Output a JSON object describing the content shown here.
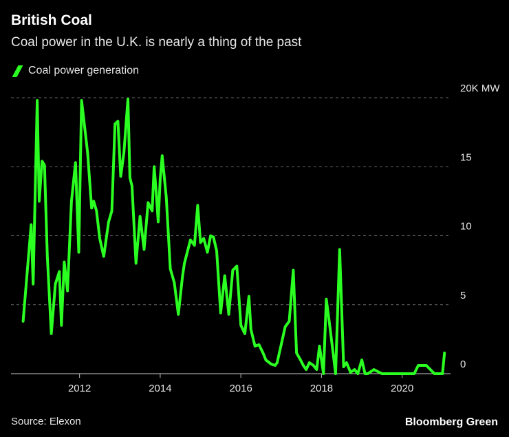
{
  "header": {
    "title": "British Coal",
    "subtitle": "Coal power in the U.K. is nearly a thing of the past"
  },
  "legend": {
    "label": "Coal power generation",
    "color": "#2bff22"
  },
  "footer": {
    "source": "Source: Elexon",
    "brand": "Bloomberg Green"
  },
  "colors": {
    "background": "#000000",
    "line": "#2bff22",
    "grid": "#666666",
    "text": "#e6e6e6"
  },
  "chart_data": {
    "type": "line",
    "title": "British Coal",
    "subtitle": "Coal power in the U.K. is nearly a thing of the past",
    "xlabel": "",
    "ylabel": "MW",
    "xlim": [
      2010.3,
      2021.2
    ],
    "ylim": [
      0,
      20000
    ],
    "x_ticks": [
      2012,
      2014,
      2016,
      2018,
      2020
    ],
    "x_tick_labels": [
      "2012",
      "2014",
      "2016",
      "2018",
      "2020"
    ],
    "y_ticks": [
      0,
      5000,
      10000,
      15000,
      20000
    ],
    "y_tick_labels": [
      "0",
      "5",
      "10",
      "15",
      "20K MW"
    ],
    "grid": true,
    "legend_position": "top-left",
    "series": [
      {
        "name": "Coal power generation",
        "x": [
          2010.6,
          2010.8,
          2010.85,
          2010.95,
          2011.0,
          2011.07,
          2011.13,
          2011.2,
          2011.3,
          2011.4,
          2011.5,
          2011.55,
          2011.62,
          2011.7,
          2011.8,
          2011.9,
          2011.98,
          2012.05,
          2012.2,
          2012.3,
          2012.35,
          2012.42,
          2012.5,
          2012.6,
          2012.72,
          2012.8,
          2012.88,
          2012.95,
          2013.02,
          2013.1,
          2013.2,
          2013.25,
          2013.3,
          2013.4,
          2013.5,
          2013.6,
          2013.7,
          2013.8,
          2013.85,
          2013.9,
          2013.95,
          2014.0,
          2014.05,
          2014.15,
          2014.25,
          2014.35,
          2014.45,
          2014.55,
          2014.6,
          2014.75,
          2014.85,
          2014.93,
          2015.0,
          2015.08,
          2015.17,
          2015.25,
          2015.32,
          2015.4,
          2015.5,
          2015.6,
          2015.7,
          2015.8,
          2015.9,
          2016.0,
          2016.1,
          2016.2,
          2016.25,
          2016.35,
          2016.45,
          2016.55,
          2016.62,
          2016.75,
          2016.85,
          2016.9,
          2017.0,
          2017.1,
          2017.2,
          2017.3,
          2017.38,
          2017.48,
          2017.55,
          2017.62,
          2017.7,
          2017.8,
          2017.88,
          2017.95,
          2018.05,
          2018.12,
          2018.2,
          2018.3,
          2018.35,
          2018.45,
          2018.55,
          2018.62,
          2018.72,
          2018.82,
          2018.9,
          2019.0,
          2019.08,
          2019.15,
          2019.3,
          2019.5,
          2019.7,
          2019.9,
          2020.05,
          2020.2,
          2020.3,
          2020.4,
          2020.5,
          2020.6,
          2020.8,
          2020.95,
          2021.0,
          2021.05
        ],
        "values": [
          3800,
          10800,
          6500,
          19800,
          12500,
          15400,
          15100,
          8500,
          2900,
          6500,
          7400,
          3500,
          8100,
          6000,
          12500,
          15300,
          8800,
          19800,
          16000,
          12000,
          12500,
          11800,
          9800,
          8500,
          11000,
          11800,
          18100,
          18300,
          14300,
          16000,
          19900,
          14200,
          13600,
          8000,
          11400,
          9000,
          12400,
          11800,
          15000,
          13200,
          11000,
          14100,
          15800,
          12800,
          7600,
          6600,
          4300,
          7000,
          8000,
          9700,
          9300,
          12200,
          9500,
          9800,
          8800,
          10000,
          9900,
          8900,
          4400,
          7100,
          4300,
          7500,
          7800,
          3500,
          2900,
          5600,
          3200,
          2000,
          2100,
          1500,
          1000,
          700,
          600,
          800,
          2100,
          3400,
          3800,
          7500,
          1500,
          1000,
          600,
          300,
          800,
          600,
          300,
          2000,
          0,
          5400,
          3600,
          1200,
          0,
          9000,
          500,
          800,
          100,
          300,
          0,
          1000,
          0,
          0,
          300,
          0,
          0,
          0,
          0,
          0,
          0,
          600,
          600,
          600,
          0,
          0,
          0,
          1500
        ]
      }
    ]
  }
}
